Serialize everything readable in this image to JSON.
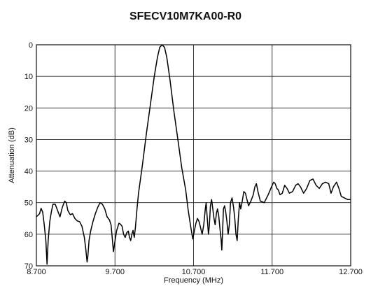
{
  "chart_data": {
    "type": "line",
    "title": "SFECV10M7KA00-R0",
    "xlabel": "Frequency (MHz)",
    "ylabel": "Attenuation (dB)",
    "xlim": [
      8.7,
      12.7
    ],
    "ylim": [
      0,
      70
    ],
    "y_inverted": true,
    "grid": true,
    "x_ticks": [
      8.7,
      9.7,
      10.7,
      11.7,
      12.7
    ],
    "x_tick_labels": [
      "8.700",
      "9.700",
      "10.700",
      "11.700",
      "12.700"
    ],
    "y_ticks": [
      0,
      10,
      20,
      30,
      40,
      50,
      60,
      70
    ],
    "y_tick_labels": [
      "0",
      "10",
      "20",
      "30",
      "40",
      "50",
      "60",
      "70"
    ],
    "series": [
      {
        "points": [
          [
            8.7,
            54.5
          ],
          [
            8.74,
            53.5
          ],
          [
            8.76,
            51.8
          ],
          [
            8.78,
            53
          ],
          [
            8.8,
            57
          ],
          [
            8.82,
            62
          ],
          [
            8.835,
            69.5
          ],
          [
            8.85,
            62
          ],
          [
            8.87,
            56
          ],
          [
            8.89,
            53
          ],
          [
            8.91,
            50.5
          ],
          [
            8.94,
            50.5
          ],
          [
            8.97,
            52.5
          ],
          [
            9.0,
            54.5
          ],
          [
            9.03,
            51.5
          ],
          [
            9.06,
            49.5
          ],
          [
            9.08,
            50
          ],
          [
            9.1,
            52.5
          ],
          [
            9.13,
            53.8
          ],
          [
            9.16,
            53.5
          ],
          [
            9.19,
            55
          ],
          [
            9.22,
            55.8
          ],
          [
            9.25,
            56
          ],
          [
            9.28,
            57.5
          ],
          [
            9.31,
            61
          ],
          [
            9.33,
            65
          ],
          [
            9.345,
            68.8
          ],
          [
            9.355,
            67
          ],
          [
            9.37,
            62
          ],
          [
            9.39,
            59
          ],
          [
            9.42,
            56
          ],
          [
            9.45,
            53.5
          ],
          [
            9.48,
            51.5
          ],
          [
            9.51,
            50
          ],
          [
            9.54,
            50.5
          ],
          [
            9.57,
            52
          ],
          [
            9.6,
            54.5
          ],
          [
            9.63,
            55.5
          ],
          [
            9.65,
            57
          ],
          [
            9.665,
            61
          ],
          [
            9.68,
            65.5
          ],
          [
            9.695,
            63
          ],
          [
            9.72,
            59
          ],
          [
            9.75,
            56.5
          ],
          [
            9.77,
            56.8
          ],
          [
            9.79,
            57.5
          ],
          [
            9.81,
            60
          ],
          [
            9.83,
            61
          ],
          [
            9.85,
            59.5
          ],
          [
            9.87,
            59
          ],
          [
            9.885,
            61
          ],
          [
            9.9,
            62
          ],
          [
            9.915,
            60
          ],
          [
            9.93,
            58.8
          ],
          [
            9.945,
            61
          ],
          [
            9.96,
            58
          ],
          [
            9.98,
            52
          ],
          [
            10.0,
            47
          ],
          [
            10.05,
            38
          ],
          [
            10.1,
            28
          ],
          [
            10.15,
            19
          ],
          [
            10.2,
            10
          ],
          [
            10.24,
            4
          ],
          [
            10.27,
            0.8
          ],
          [
            10.3,
            0
          ],
          [
            10.33,
            0.8
          ],
          [
            10.36,
            4
          ],
          [
            10.4,
            11
          ],
          [
            10.45,
            21
          ],
          [
            10.5,
            30
          ],
          [
            10.55,
            39
          ],
          [
            10.6,
            46
          ],
          [
            10.63,
            52
          ],
          [
            10.66,
            57
          ],
          [
            10.69,
            61.5
          ],
          [
            10.71,
            59
          ],
          [
            10.73,
            56.5
          ],
          [
            10.75,
            55
          ],
          [
            10.77,
            56
          ],
          [
            10.79,
            58
          ],
          [
            10.81,
            60
          ],
          [
            10.83,
            57
          ],
          [
            10.85,
            52
          ],
          [
            10.86,
            50
          ],
          [
            10.875,
            55
          ],
          [
            10.89,
            60
          ],
          [
            10.9,
            57.5
          ],
          [
            10.915,
            51
          ],
          [
            10.93,
            49
          ],
          [
            10.945,
            52
          ],
          [
            10.96,
            55
          ],
          [
            10.975,
            57
          ],
          [
            10.99,
            53.5
          ],
          [
            11.005,
            52
          ],
          [
            11.02,
            54
          ],
          [
            11.035,
            58
          ],
          [
            11.05,
            61.5
          ],
          [
            11.06,
            65
          ],
          [
            11.07,
            59
          ],
          [
            11.08,
            52
          ],
          [
            11.095,
            51
          ],
          [
            11.11,
            53
          ],
          [
            11.125,
            56
          ],
          [
            11.14,
            60
          ],
          [
            11.155,
            57
          ],
          [
            11.17,
            50
          ],
          [
            11.19,
            48.5
          ],
          [
            11.21,
            51.5
          ],
          [
            11.225,
            55
          ],
          [
            11.24,
            60
          ],
          [
            11.255,
            62
          ],
          [
            11.27,
            55
          ],
          [
            11.285,
            50
          ],
          [
            11.3,
            52
          ],
          [
            11.32,
            49.5
          ],
          [
            11.34,
            46.5
          ],
          [
            11.36,
            47
          ],
          [
            11.38,
            49
          ],
          [
            11.4,
            51
          ],
          [
            11.43,
            49.5
          ],
          [
            11.46,
            47.5
          ],
          [
            11.48,
            45
          ],
          [
            11.5,
            44
          ],
          [
            11.52,
            46.5
          ],
          [
            11.55,
            49.5
          ],
          [
            11.6,
            50
          ],
          [
            11.65,
            47.5
          ],
          [
            11.7,
            44.5
          ],
          [
            11.72,
            43.5
          ],
          [
            11.74,
            44
          ],
          [
            11.76,
            45.5
          ],
          [
            11.78,
            46
          ],
          [
            11.8,
            47.5
          ],
          [
            11.83,
            47
          ],
          [
            11.86,
            44.5
          ],
          [
            11.89,
            45.5
          ],
          [
            11.92,
            47
          ],
          [
            11.96,
            46.5
          ],
          [
            12.0,
            44.5
          ],
          [
            12.03,
            44
          ],
          [
            12.06,
            45
          ],
          [
            12.1,
            47
          ],
          [
            12.14,
            45.5
          ],
          [
            12.18,
            43
          ],
          [
            12.22,
            42.5
          ],
          [
            12.26,
            44.5
          ],
          [
            12.3,
            45.5
          ],
          [
            12.34,
            44
          ],
          [
            12.38,
            43.5
          ],
          [
            12.42,
            44
          ],
          [
            12.45,
            47
          ],
          [
            12.48,
            45
          ],
          [
            12.52,
            43.5
          ],
          [
            12.55,
            45.5
          ],
          [
            12.58,
            48
          ],
          [
            12.62,
            48.5
          ],
          [
            12.66,
            49
          ],
          [
            12.7,
            49
          ]
        ]
      }
    ]
  }
}
